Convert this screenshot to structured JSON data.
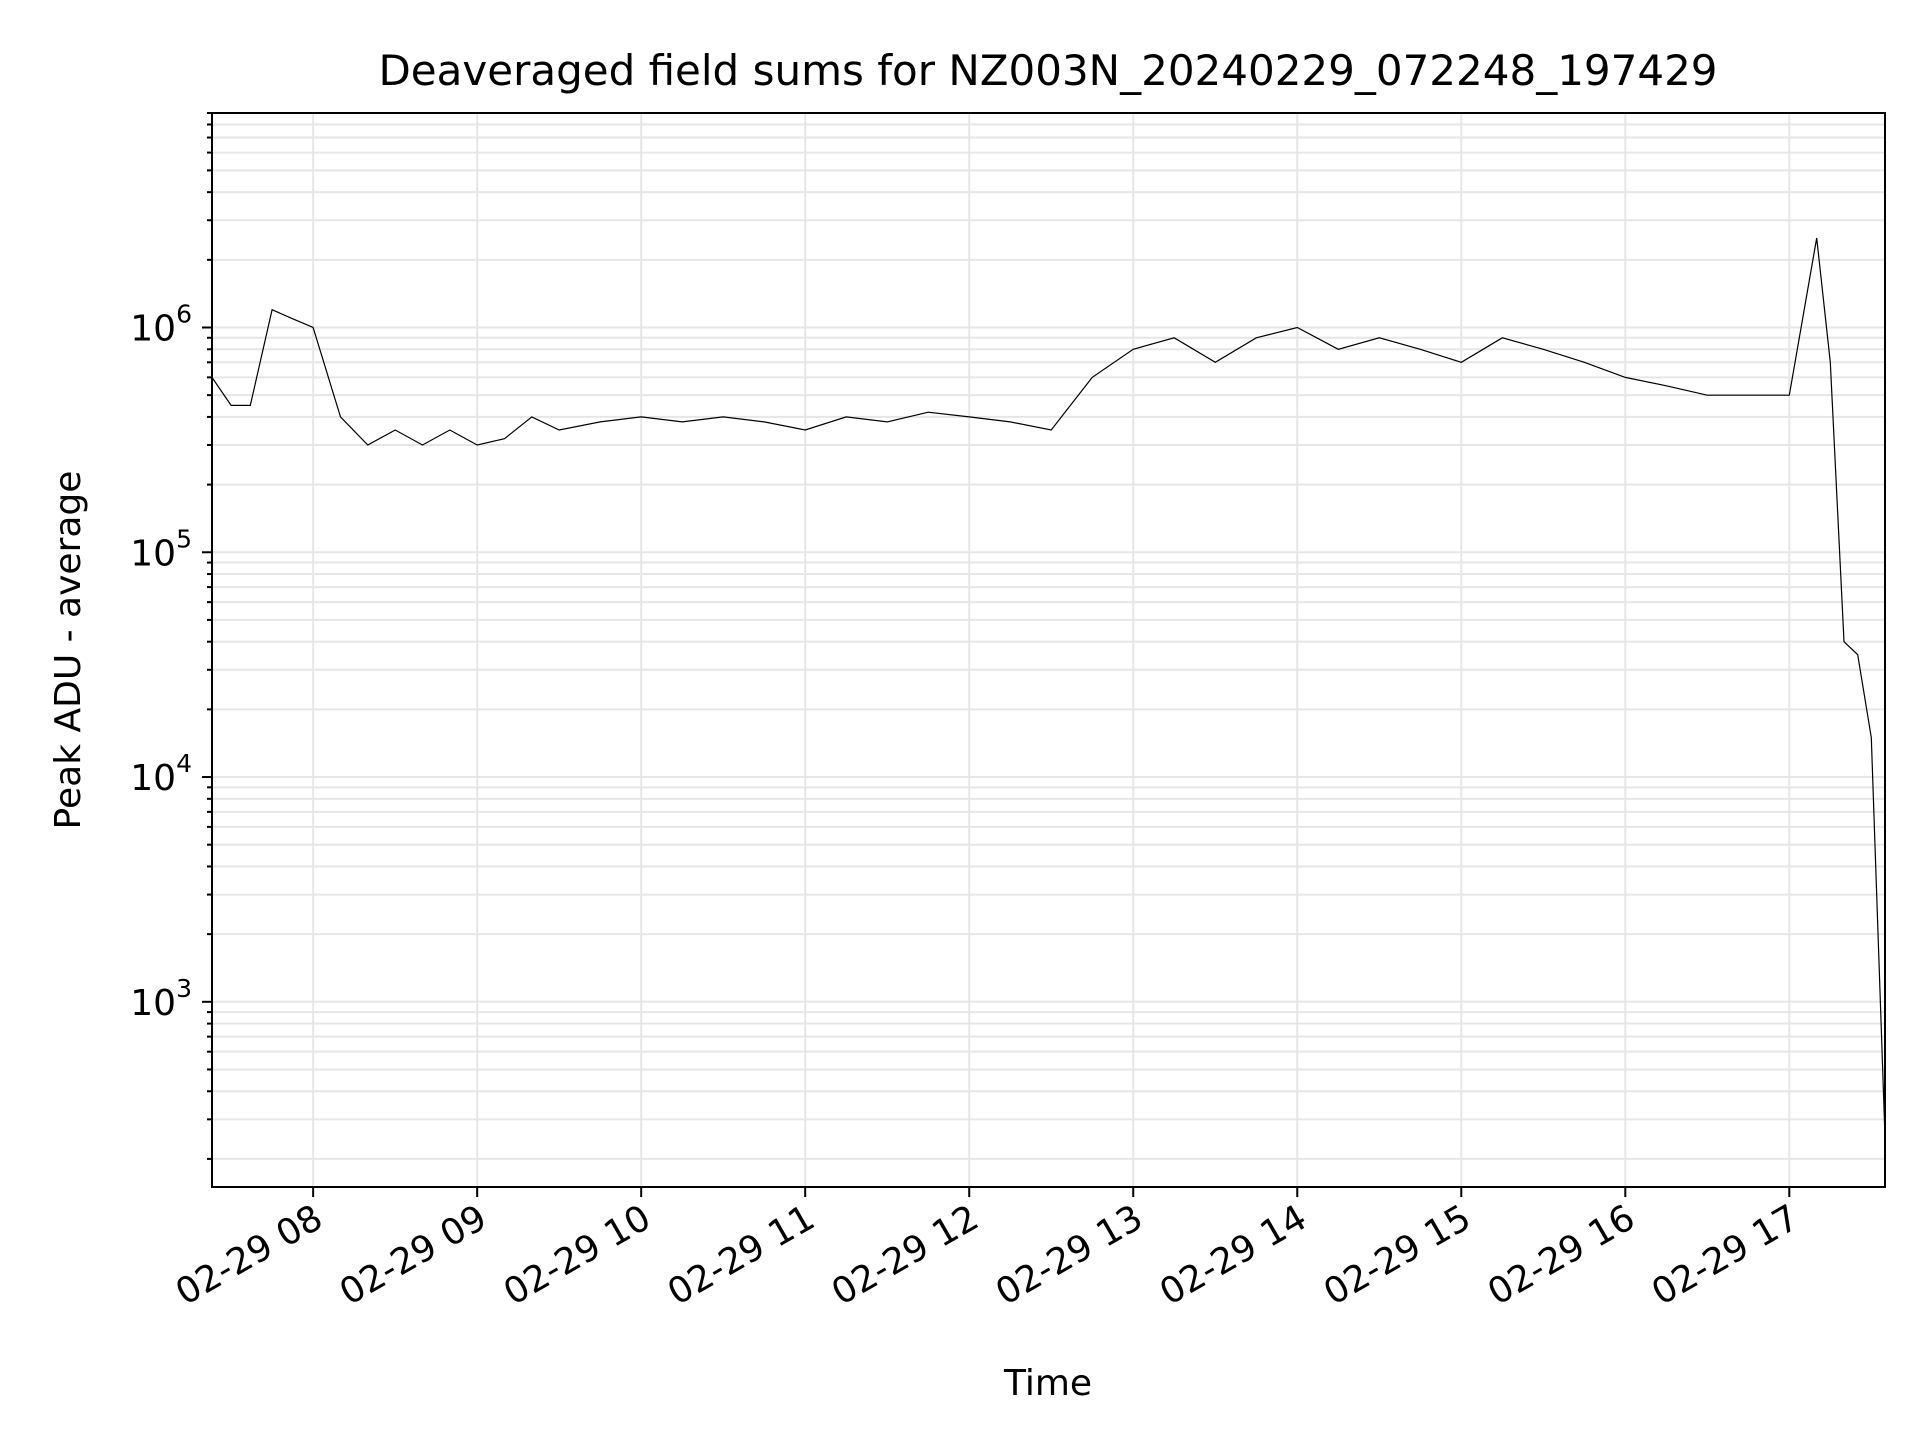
{
  "chart_data": {
    "type": "line",
    "title": "Deaveraged field sums for NZ003N_20240229_072248_197429",
    "xlabel": "Time",
    "ylabel": "Peak ADU - average",
    "yscale": "log",
    "ylim": [
      150,
      9000000
    ],
    "xlim": [
      "2024-02-29 07:23",
      "2024-02-29 17:35"
    ],
    "grid": true,
    "xticks": [
      {
        "t": "2024-02-29 08:00",
        "label": "02-29 08"
      },
      {
        "t": "2024-02-29 09:00",
        "label": "02-29 09"
      },
      {
        "t": "2024-02-29 10:00",
        "label": "02-29 10"
      },
      {
        "t": "2024-02-29 11:00",
        "label": "02-29 11"
      },
      {
        "t": "2024-02-29 12:00",
        "label": "02-29 12"
      },
      {
        "t": "2024-02-29 13:00",
        "label": "02-29 13"
      },
      {
        "t": "2024-02-29 14:00",
        "label": "02-29 14"
      },
      {
        "t": "2024-02-29 15:00",
        "label": "02-29 15"
      },
      {
        "t": "2024-02-29 16:00",
        "label": "02-29 16"
      },
      {
        "t": "2024-02-29 17:00",
        "label": "02-29 17"
      }
    ],
    "yticks": [
      {
        "value": 1000,
        "base": "10",
        "exp": "3"
      },
      {
        "value": 10000,
        "base": "10",
        "exp": "4"
      },
      {
        "value": 100000,
        "base": "10",
        "exp": "5"
      },
      {
        "value": 1000000,
        "base": "10",
        "exp": "6"
      }
    ],
    "series": [
      {
        "color": "#000000",
        "x": [
          "2024-02-29 07:23",
          "2024-02-29 07:30",
          "2024-02-29 07:37",
          "2024-02-29 07:45",
          "2024-02-29 07:52",
          "2024-02-29 08:00",
          "2024-02-29 08:10",
          "2024-02-29 08:20",
          "2024-02-29 08:30",
          "2024-02-29 08:40",
          "2024-02-29 08:50",
          "2024-02-29 09:00",
          "2024-02-29 09:10",
          "2024-02-29 09:20",
          "2024-02-29 09:30",
          "2024-02-29 09:45",
          "2024-02-29 10:00",
          "2024-02-29 10:15",
          "2024-02-29 10:30",
          "2024-02-29 10:45",
          "2024-02-29 11:00",
          "2024-02-29 11:15",
          "2024-02-29 11:30",
          "2024-02-29 11:45",
          "2024-02-29 12:00",
          "2024-02-29 12:15",
          "2024-02-29 12:30",
          "2024-02-29 12:45",
          "2024-02-29 13:00",
          "2024-02-29 13:15",
          "2024-02-29 13:30",
          "2024-02-29 13:45",
          "2024-02-29 14:00",
          "2024-02-29 14:15",
          "2024-02-29 14:30",
          "2024-02-29 14:45",
          "2024-02-29 15:00",
          "2024-02-29 15:15",
          "2024-02-29 15:30",
          "2024-02-29 15:45",
          "2024-02-29 16:00",
          "2024-02-29 16:15",
          "2024-02-29 16:30",
          "2024-02-29 16:45",
          "2024-02-29 17:00",
          "2024-02-29 17:10",
          "2024-02-29 17:15",
          "2024-02-29 17:20",
          "2024-02-29 17:25",
          "2024-02-29 17:30",
          "2024-02-29 17:35"
        ],
        "y": [
          600000,
          450000,
          450000,
          1200000,
          1100000,
          1000000,
          400000,
          300000,
          350000,
          300000,
          350000,
          300000,
          320000,
          400000,
          350000,
          380000,
          400000,
          380000,
          400000,
          380000,
          350000,
          400000,
          380000,
          420000,
          400000,
          380000,
          350000,
          600000,
          800000,
          900000,
          700000,
          900000,
          1000000,
          800000,
          900000,
          800000,
          700000,
          900000,
          800000,
          700000,
          600000,
          550000,
          500000,
          500000,
          500000,
          2500000,
          700000,
          40000,
          35000,
          15000,
          250
        ]
      }
    ]
  }
}
